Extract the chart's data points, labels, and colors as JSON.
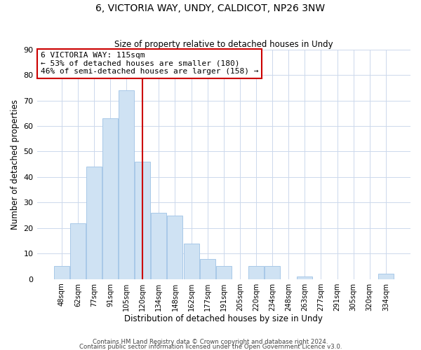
{
  "title": "6, VICTORIA WAY, UNDY, CALDICOT, NP26 3NW",
  "subtitle": "Size of property relative to detached houses in Undy",
  "xlabel": "Distribution of detached houses by size in Undy",
  "ylabel": "Number of detached properties",
  "bar_color": "#cfe2f3",
  "bar_edge_color": "#a8c8e8",
  "categories": [
    "48sqm",
    "62sqm",
    "77sqm",
    "91sqm",
    "105sqm",
    "120sqm",
    "134sqm",
    "148sqm",
    "162sqm",
    "177sqm",
    "191sqm",
    "205sqm",
    "220sqm",
    "234sqm",
    "248sqm",
    "263sqm",
    "277sqm",
    "291sqm",
    "305sqm",
    "320sqm",
    "334sqm"
  ],
  "values": [
    5,
    22,
    44,
    63,
    74,
    46,
    26,
    25,
    14,
    8,
    5,
    0,
    5,
    5,
    0,
    1,
    0,
    0,
    0,
    0,
    2
  ],
  "ylim": [
    0,
    90
  ],
  "yticks": [
    0,
    10,
    20,
    30,
    40,
    50,
    60,
    70,
    80,
    90
  ],
  "vline_color": "#cc0000",
  "annotation_text": "6 VICTORIA WAY: 115sqm\n← 53% of detached houses are smaller (180)\n46% of semi-detached houses are larger (158) →",
  "annotation_box_color": "#ffffff",
  "annotation_box_edge": "#cc0000",
  "footer1": "Contains HM Land Registry data © Crown copyright and database right 2024.",
  "footer2": "Contains public sector information licensed under the Open Government Licence v3.0.",
  "background_color": "#ffffff",
  "grid_color": "#ccd8ec"
}
